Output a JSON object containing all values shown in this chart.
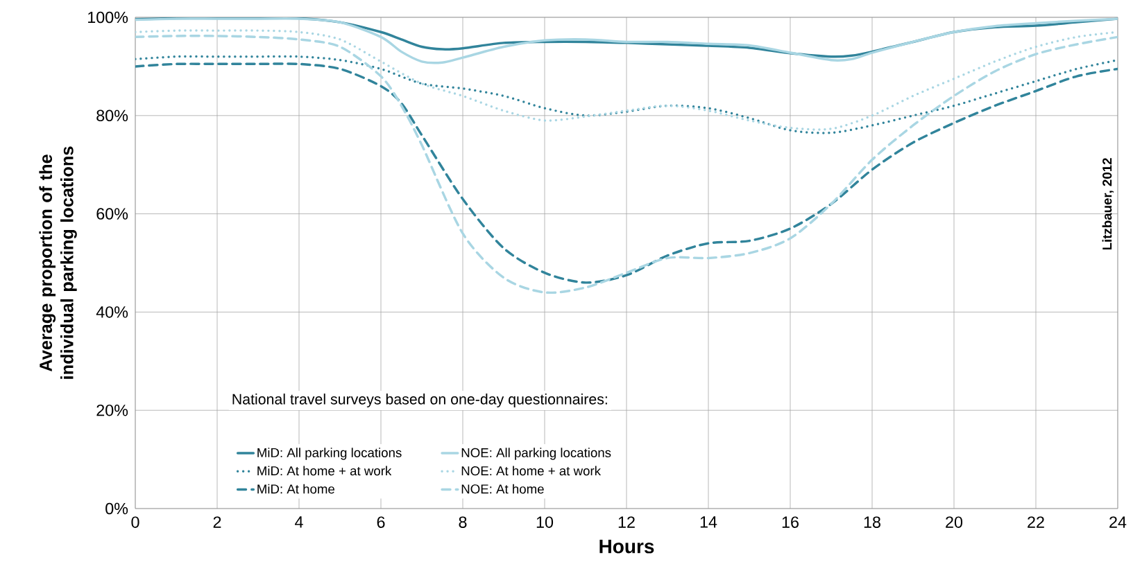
{
  "chart_data": {
    "type": "line",
    "xlabel": "Hours",
    "ylabel": "Average proportion of the individual parking locations",
    "legend_title": "National travel surveys based on one-day questionnaires:",
    "legend": "bottom left",
    "grid": true,
    "xlim": [
      0,
      24
    ],
    "ylim": [
      0,
      100
    ],
    "xticks": [
      0,
      2,
      4,
      6,
      8,
      10,
      12,
      14,
      16,
      18,
      20,
      22,
      24
    ],
    "yticks": [
      {
        "value": 0,
        "label": "0%"
      },
      {
        "value": 20,
        "label": "20%"
      },
      {
        "value": 40,
        "label": "40%"
      },
      {
        "value": 60,
        "label": "60%"
      },
      {
        "value": 80,
        "label": "80%"
      },
      {
        "value": 100,
        "label": "100%"
      }
    ],
    "annotations": [
      "Litzbauer,  2012"
    ],
    "series": [
      {
        "name": "MiD: All parking locations",
        "color": "#31849b",
        "line_style": "solid",
        "x": [
          0,
          1,
          2,
          3,
          4,
          5,
          6,
          6.5,
          7,
          7.5,
          8,
          9,
          10,
          11,
          12,
          13,
          14,
          15,
          16,
          17,
          17.5,
          18,
          19,
          20,
          21,
          22,
          23,
          24
        ],
        "values": [
          99.6,
          99.8,
          99.8,
          99.8,
          99.8,
          99,
          97,
          95.5,
          94,
          93.5,
          93.7,
          94.8,
          95,
          95,
          94.8,
          94.5,
          94.2,
          93.8,
          92.7,
          92,
          92.2,
          93,
          95,
          97,
          98,
          98.3,
          99,
          99.7
        ]
      },
      {
        "name": "NOE: All parking locations",
        "color": "#a9d6e3",
        "line_style": "solid",
        "x": [
          0,
          1,
          2,
          3,
          4,
          5,
          6,
          6.5,
          7,
          7.5,
          8,
          9,
          10,
          11,
          12,
          13,
          14,
          15,
          16,
          17,
          17.5,
          18,
          19,
          20,
          21,
          22,
          23,
          24
        ],
        "values": [
          99.5,
          99.7,
          99.7,
          99.7,
          99.7,
          99,
          96,
          93,
          91,
          90.8,
          91.8,
          94,
          95.3,
          95.5,
          95,
          95,
          94.6,
          94.3,
          92.8,
          91.3,
          91.5,
          92.8,
          95,
          97,
          98.2,
          98.8,
          99.3,
          99.7
        ]
      },
      {
        "name": "MiD: At home + at work",
        "color": "#31849b",
        "line_style": "dotted",
        "x": [
          0,
          1,
          2,
          3,
          4,
          5,
          6,
          7,
          8,
          9,
          10,
          11,
          12,
          13,
          14,
          15,
          16,
          17,
          18,
          19,
          20,
          21,
          22,
          23,
          24
        ],
        "values": [
          91.5,
          92,
          92,
          92,
          92,
          91.3,
          89.5,
          86.5,
          85.5,
          84,
          81.5,
          80,
          80.8,
          82,
          81.5,
          79.5,
          77,
          76.5,
          78,
          80,
          82,
          84.5,
          87,
          89.5,
          91.3
        ]
      },
      {
        "name": "NOE: At home + at work",
        "color": "#a9d6e3",
        "line_style": "dotted",
        "x": [
          0,
          1,
          2,
          3,
          4,
          5,
          6,
          7,
          8,
          9,
          10,
          11,
          12,
          13,
          14,
          15,
          16,
          17,
          18,
          19,
          20,
          21,
          22,
          23,
          24
        ],
        "values": [
          97,
          97.3,
          97.3,
          97.3,
          97,
          95.5,
          91,
          86.5,
          84,
          81,
          79,
          79.8,
          81,
          82,
          81,
          79,
          77.5,
          77.3,
          80,
          84,
          87.5,
          91,
          94,
          96,
          97
        ]
      },
      {
        "name": "MiD: At home",
        "color": "#31849b",
        "line_style": "dashed",
        "x": [
          0,
          1,
          2,
          3,
          4,
          5,
          6,
          6.5,
          7,
          8,
          9,
          10,
          11,
          12,
          13,
          14,
          15,
          16,
          17,
          18,
          19,
          20,
          21,
          22,
          23,
          24
        ],
        "values": [
          90,
          90.5,
          90.5,
          90.5,
          90.5,
          89.5,
          86,
          82.5,
          76,
          63,
          53,
          48,
          46,
          47.5,
          51.5,
          54,
          54.5,
          57,
          62,
          69,
          74.5,
          78.5,
          82,
          85,
          88,
          89.5
        ]
      },
      {
        "name": "NOE: At home",
        "color": "#a9d6e3",
        "line_style": "dashed",
        "x": [
          0,
          1,
          2,
          3,
          4,
          5,
          6,
          6.5,
          7,
          8,
          9,
          10,
          11,
          12,
          13,
          14,
          15,
          16,
          17,
          18,
          19,
          20,
          21,
          22,
          23,
          24
        ],
        "values": [
          96,
          96.2,
          96.2,
          96,
          95.5,
          94,
          88,
          82,
          74,
          56,
          47,
          44,
          45,
          48,
          51,
          51,
          52,
          55,
          62,
          71,
          78,
          84,
          89,
          92.5,
          94.5,
          96
        ]
      }
    ]
  }
}
